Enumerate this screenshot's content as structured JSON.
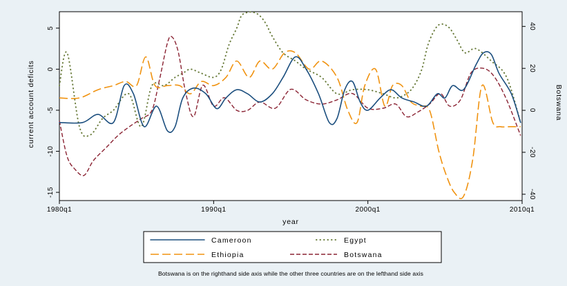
{
  "chart_data": {
    "type": "line",
    "title": "",
    "xlabel": "year",
    "ylabel_left": "current account deficits",
    "ylabel_right": "Botswana",
    "x_ticks": [
      "1980q1",
      "1990q1",
      "2000q1",
      "2010q1"
    ],
    "x_range": [
      1980,
      2010
    ],
    "ylim_left": [
      -16,
      7
    ],
    "yticks_left": [
      "5",
      "0",
      "-5",
      "-10",
      "-15"
    ],
    "ylim_right": [
      -43,
      47
    ],
    "yticks_right": [
      "40",
      "20",
      "0",
      "-20",
      "-40"
    ],
    "grid": false,
    "legend_placement": "bottom",
    "note": "Botswana is on the righthand side axis while the other three countries are on the lefthand side axis",
    "series": [
      {
        "name": "Cameroon",
        "axis": "left",
        "color": "#1b4e7e",
        "dash": "solid",
        "x": [
          1980,
          1981.5,
          1982.5,
          1983.5,
          1984.2,
          1984.8,
          1985.5,
          1986.3,
          1987,
          1987.5,
          1988,
          1988.7,
          1989.5,
          1990.2,
          1990.8,
          1991.5,
          1992.2,
          1993,
          1993.8,
          1994.5,
          1995.3,
          1996,
          1996.8,
          1997.5,
          1998,
          1998.5,
          1999,
          1999.5,
          2000,
          2000.8,
          2001.5,
          2002.2,
          2003,
          2003.8,
          2004.5,
          2005,
          2005.5,
          2006.2,
          2007,
          2007.5,
          2008,
          2008.5,
          2009.3,
          2009.9
        ],
        "y": [
          -6.5,
          -6.5,
          -5.5,
          -6.5,
          -2,
          -3,
          -7,
          -4.5,
          -7.5,
          -7,
          -3.5,
          -2.3,
          -3,
          -4.8,
          -3.5,
          -2.5,
          -3,
          -4,
          -3,
          -1,
          1.5,
          0,
          -3,
          -6.5,
          -6,
          -2.5,
          -1.5,
          -4,
          -5,
          -3.5,
          -2.5,
          -3.5,
          -4,
          -4.5,
          -3,
          -3.5,
          -2,
          -2.5,
          0.5,
          2,
          1.8,
          -0.5,
          -3,
          -6.5
        ]
      },
      {
        "name": "Egypt",
        "axis": "left",
        "color": "#6b7d3d",
        "dash": "dotted",
        "x": [
          1980,
          1980.5,
          1981.3,
          1982,
          1982.8,
          1983.5,
          1984.5,
          1985.3,
          1986,
          1986.8,
          1987.5,
          1988,
          1988.5,
          1989.2,
          1990,
          1990.5,
          1991,
          1991.5,
          1991.8,
          1992.2,
          1992.6,
          1993,
          1993.4,
          1993.8,
          1994.5,
          1995.3,
          1996,
          1997,
          1998,
          1999,
          2000,
          2001,
          2001.8,
          2002.5,
          2003,
          2003.5,
          2003.9,
          2004.4,
          2004.8,
          2005.3,
          2005.8,
          2006.3,
          2007,
          2008,
          2009,
          2009.9
        ],
        "y": [
          -2,
          2,
          -7,
          -8,
          -6,
          -5,
          -3,
          -7,
          -2,
          -2,
          -1,
          -0.5,
          0,
          -0.5,
          -1,
          0,
          3,
          5,
          6.5,
          7,
          7,
          6.5,
          5.5,
          4,
          2,
          1,
          0,
          -1,
          -3,
          -2.5,
          -2.5,
          -3,
          -3.5,
          -3,
          -2,
          0,
          3,
          5,
          5.5,
          5,
          3.5,
          2,
          2.5,
          1,
          -1,
          -6.5
        ]
      },
      {
        "name": "Ethiopia",
        "axis": "left",
        "color": "#f0920f",
        "dash": "dashed",
        "x": [
          1980,
          1981.3,
          1982.5,
          1983.5,
          1984.3,
          1985,
          1985.6,
          1986.2,
          1987,
          1987.8,
          1988.5,
          1989.2,
          1990,
          1990.8,
          1991.5,
          1992.3,
          1993,
          1993.8,
          1994.6,
          1995.3,
          1996.2,
          1997,
          1998,
          1998.7,
          1999.3,
          1999.8,
          2000.5,
          2001.1,
          2001.6,
          2002.2,
          2002.8,
          2003.4,
          2004,
          2004.6,
          2005.1,
          2005.6,
          2006.2,
          2006.8,
          2007.4,
          2008.1,
          2008.6,
          2009.2,
          2009.9
        ],
        "y": [
          -3.5,
          -3.5,
          -2.5,
          -2,
          -1.5,
          -2,
          1.5,
          -2,
          -2,
          -2,
          -3,
          -1.5,
          -2,
          -1,
          1,
          -1,
          1,
          0,
          2,
          2,
          0,
          1,
          -1,
          -5,
          -6.5,
          -2,
          0,
          -4.5,
          -2,
          -2,
          -4,
          -4.5,
          -5,
          -10,
          -13,
          -15,
          -15.5,
          -11,
          -2,
          -6.5,
          -7,
          -7,
          -7
        ]
      },
      {
        "name": "Botswana",
        "axis": "right",
        "color": "#8a2232",
        "dash": "dashdot",
        "x": [
          1980,
          1980.5,
          1981,
          1981.6,
          1982.2,
          1983,
          1983.8,
          1984.5,
          1985.3,
          1986,
          1986.5,
          1987,
          1987.3,
          1987.7,
          1988.2,
          1988.7,
          1989.3,
          1990,
          1990.7,
          1991.5,
          1992.2,
          1993,
          1994,
          1995,
          1996,
          1997,
          1998,
          1999,
          2000,
          2001,
          2001.8,
          2002.5,
          2003.2,
          2004,
          2004.7,
          2005.3,
          2006,
          2006.7,
          2007.5,
          2008.2,
          2009,
          2009.9
        ],
        "y": [
          -5,
          -22,
          -28,
          -31,
          -24,
          -18,
          -12,
          -8,
          -4,
          0,
          15,
          32,
          35,
          28,
          8,
          -3,
          12,
          2,
          6,
          0,
          0,
          4,
          1,
          10,
          5,
          3,
          5,
          8,
          1,
          1,
          3,
          -3,
          -1,
          3,
          8,
          2,
          5,
          18,
          20,
          16,
          5,
          -12
        ]
      }
    ]
  }
}
